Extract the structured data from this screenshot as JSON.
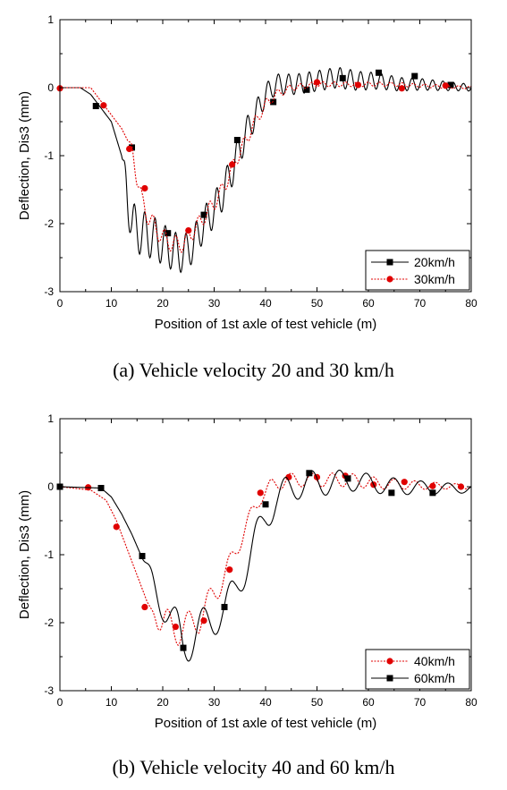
{
  "chart_data": [
    {
      "type": "line",
      "xlabel": "Position of 1st axle of test vehicle (m)",
      "ylabel": "Deflection, Dis3 (mm)",
      "xlim": [
        0,
        80
      ],
      "ylim": [
        -3,
        1
      ],
      "xticks": [
        "0",
        "10",
        "20",
        "30",
        "40",
        "50",
        "60",
        "70",
        "80"
      ],
      "yticks": [
        "1",
        "0",
        "-1",
        "-2",
        "-3"
      ],
      "legend_position": "bottom-right",
      "series": [
        {
          "name": "20km/h",
          "color": "#000000",
          "dash": "solid",
          "marker": "square",
          "trend": [
            [
              0,
              0
            ],
            [
              4,
              0
            ],
            [
              6,
              -0.1
            ],
            [
              8,
              -0.3
            ],
            [
              10,
              -0.5
            ],
            [
              12,
              -1.0
            ],
            [
              13,
              -1.5
            ],
            [
              14,
              -2.0
            ],
            [
              15,
              -2.1
            ],
            [
              18,
              -2.2
            ],
            [
              20,
              -2.3
            ],
            [
              22,
              -2.4
            ],
            [
              24,
              -2.45
            ],
            [
              26,
              -2.3
            ],
            [
              28,
              -2.0
            ],
            [
              30,
              -1.8
            ],
            [
              32,
              -1.5
            ],
            [
              34,
              -1.1
            ],
            [
              36,
              -0.7
            ],
            [
              38,
              -0.4
            ],
            [
              40,
              -0.1
            ],
            [
              42,
              0.05
            ],
            [
              46,
              0.05
            ],
            [
              50,
              0.1
            ],
            [
              54,
              0.15
            ],
            [
              58,
              0.1
            ],
            [
              62,
              0.1
            ],
            [
              66,
              0.05
            ],
            [
              70,
              0.05
            ],
            [
              80,
              0.0
            ]
          ],
          "oscillation": [
            [
              12,
              0
            ],
            [
              13,
              0.35
            ],
            [
              20,
              0.3
            ],
            [
              28,
              0.25
            ],
            [
              34,
              0.25
            ],
            [
              41,
              0.15
            ],
            [
              48,
              0.15
            ],
            [
              56,
              0.15
            ],
            [
              66,
              0.1
            ],
            [
              80,
              0.05
            ]
          ],
          "period": 2.0,
          "markers": [
            [
              7,
              -0.27
            ],
            [
              14,
              -0.88
            ],
            [
              21,
              -2.14
            ],
            [
              28,
              -1.87
            ],
            [
              34.5,
              -0.77
            ],
            [
              41.5,
              -0.21
            ],
            [
              48,
              -0.03
            ],
            [
              55,
              0.14
            ],
            [
              62,
              0.22
            ],
            [
              69,
              0.17
            ],
            [
              76,
              0.04
            ]
          ]
        },
        {
          "name": "30km/h",
          "color": "#e00000",
          "dash": "dotted",
          "marker": "circle",
          "trend": [
            [
              0,
              0
            ],
            [
              6,
              0
            ],
            [
              8,
              -0.2
            ],
            [
              10,
              -0.4
            ],
            [
              12,
              -0.6
            ],
            [
              14,
              -0.9
            ],
            [
              15,
              -1.3
            ],
            [
              16,
              -1.7
            ],
            [
              18,
              -2.0
            ],
            [
              20,
              -2.2
            ],
            [
              22,
              -2.3
            ],
            [
              24,
              -2.3
            ],
            [
              26,
              -2.1
            ],
            [
              28,
              -1.9
            ],
            [
              30,
              -1.7
            ],
            [
              32,
              -1.45
            ],
            [
              34,
              -1.1
            ],
            [
              36,
              -0.8
            ],
            [
              38,
              -0.5
            ],
            [
              40,
              -0.25
            ],
            [
              42,
              -0.1
            ],
            [
              45,
              0
            ],
            [
              50,
              0.05
            ],
            [
              55,
              0.05
            ],
            [
              60,
              0.05
            ],
            [
              65,
              0.05
            ],
            [
              70,
              0.03
            ],
            [
              80,
              0.0
            ]
          ],
          "oscillation": [
            [
              13,
              0
            ],
            [
              15,
              0.15
            ],
            [
              24,
              0.12
            ],
            [
              36,
              0.1
            ],
            [
              46,
              0.04
            ],
            [
              80,
              0.02
            ]
          ],
          "period": 2.2,
          "markers": [
            [
              0,
              -0.01
            ],
            [
              8.5,
              -0.26
            ],
            [
              13.5,
              -0.9
            ],
            [
              16.5,
              -1.48
            ],
            [
              25,
              -2.1
            ],
            [
              33.5,
              -1.13
            ],
            [
              50,
              0.08
            ],
            [
              58,
              0.04
            ],
            [
              66.5,
              -0.01
            ],
            [
              75,
              0.03
            ]
          ]
        }
      ],
      "legend": [
        "20km/h",
        "30km/h"
      ]
    },
    {
      "type": "line",
      "xlabel": "Position of 1st axle of test vehicle (m)",
      "ylabel": "Deflection, Dis3 (mm)",
      "xlim": [
        0,
        80
      ],
      "ylim": [
        -3,
        1
      ],
      "xticks": [
        "0",
        "10",
        "20",
        "30",
        "40",
        "50",
        "60",
        "70",
        "80"
      ],
      "yticks": [
        "1",
        "0",
        "-1",
        "-2",
        "-3"
      ],
      "legend_position": "bottom-right",
      "series": [
        {
          "name": "40km/h",
          "color": "#e00000",
          "dash": "dotted",
          "marker": "circle",
          "trend": [
            [
              0,
              0
            ],
            [
              6,
              -0.05
            ],
            [
              9,
              -0.2
            ],
            [
              11,
              -0.5
            ],
            [
              13,
              -0.9
            ],
            [
              15,
              -1.3
            ],
            [
              17,
              -1.7
            ],
            [
              19,
              -1.95
            ],
            [
              21,
              -2.05
            ],
            [
              23,
              -2.1
            ],
            [
              25,
              -2.05
            ],
            [
              27,
              -1.95
            ],
            [
              29,
              -1.7
            ],
            [
              31,
              -1.45
            ],
            [
              33,
              -1.15
            ],
            [
              35,
              -0.8
            ],
            [
              37,
              -0.45
            ],
            [
              39,
              -0.15
            ],
            [
              41,
              0.0
            ],
            [
              44,
              0.1
            ],
            [
              50,
              0.1
            ],
            [
              56,
              0.1
            ],
            [
              62,
              0.05
            ],
            [
              70,
              0.02
            ],
            [
              80,
              0.0
            ]
          ],
          "oscillation": [
            [
              18,
              0
            ],
            [
              20,
              0.25
            ],
            [
              28,
              0.2
            ],
            [
              36,
              0.12
            ],
            [
              44,
              0.1
            ],
            [
              56,
              0.1
            ],
            [
              70,
              0.06
            ],
            [
              80,
              0.03
            ]
          ],
          "period": 4.0,
          "markers": [
            [
              0,
              0
            ],
            [
              5.5,
              -0.01
            ],
            [
              11,
              -0.59
            ],
            [
              16.5,
              -1.77
            ],
            [
              22.5,
              -2.06
            ],
            [
              28,
              -1.97
            ],
            [
              33,
              -1.22
            ],
            [
              39,
              -0.09
            ],
            [
              44.5,
              0.14
            ],
            [
              50,
              0.14
            ],
            [
              55.5,
              0.16
            ],
            [
              61,
              0.03
            ],
            [
              67,
              0.07
            ],
            [
              72.5,
              0.01
            ],
            [
              78,
              0.0
            ]
          ]
        },
        {
          "name": "60km/h",
          "color": "#000000",
          "dash": "solid",
          "marker": "square",
          "trend": [
            [
              0,
              0
            ],
            [
              8,
              -0.02
            ],
            [
              10,
              -0.15
            ],
            [
              12,
              -0.4
            ],
            [
              14,
              -0.7
            ],
            [
              16,
              -1.05
            ],
            [
              18,
              -1.4
            ],
            [
              20,
              -1.7
            ],
            [
              22,
              -2.05
            ],
            [
              24,
              -2.3
            ],
            [
              26,
              -2.2
            ],
            [
              28,
              -2.05
            ],
            [
              30,
              -1.95
            ],
            [
              32,
              -1.8
            ],
            [
              34,
              -1.55
            ],
            [
              36,
              -1.2
            ],
            [
              38,
              -0.8
            ],
            [
              40,
              -0.45
            ],
            [
              42,
              -0.2
            ],
            [
              44,
              -0.05
            ],
            [
              48,
              0.05
            ],
            [
              52,
              0.05
            ],
            [
              56,
              0.1
            ],
            [
              60,
              0.05
            ],
            [
              66,
              0.0
            ],
            [
              72,
              -0.02
            ],
            [
              80,
              -0.03
            ]
          ],
          "oscillation": [
            [
              16,
              0
            ],
            [
              18,
              0.2
            ],
            [
              23,
              0.35
            ],
            [
              30,
              0.25
            ],
            [
              38,
              0.25
            ],
            [
              44,
              0.2
            ],
            [
              50,
              0.18
            ],
            [
              58,
              0.15
            ],
            [
              70,
              0.1
            ],
            [
              80,
              0.06
            ]
          ],
          "period": 5.3,
          "markers": [
            [
              0,
              0
            ],
            [
              8,
              -0.02
            ],
            [
              16,
              -1.02
            ],
            [
              24,
              -2.37
            ],
            [
              32,
              -1.77
            ],
            [
              40,
              -0.26
            ],
            [
              48.5,
              0.2
            ],
            [
              56,
              0.12
            ],
            [
              64.5,
              -0.09
            ],
            [
              72.5,
              -0.09
            ]
          ]
        }
      ],
      "legend": [
        "40km/h",
        "60km/h"
      ]
    }
  ],
  "captions": {
    "a": "(a) Vehicle velocity 20 and 30 km/h",
    "b": "(b) Vehicle velocity 40 and 60 km/h"
  }
}
